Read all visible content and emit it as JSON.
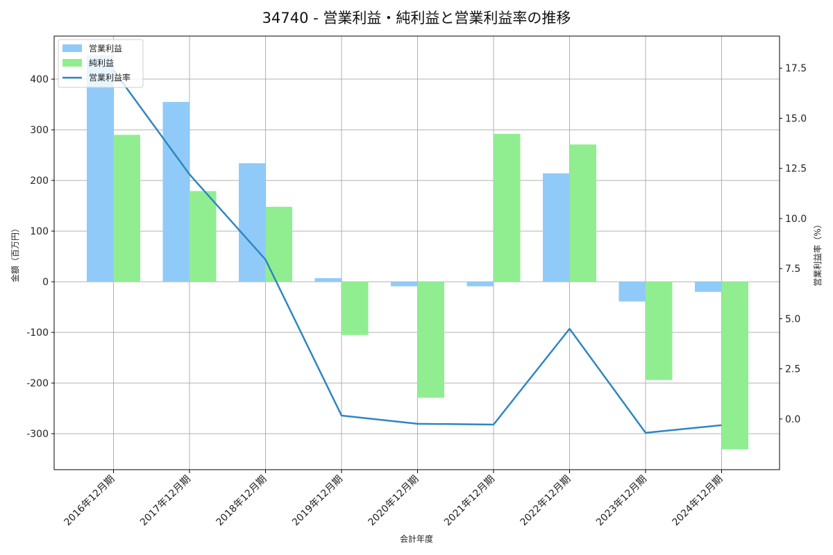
{
  "chart_data": {
    "type": "bar+line",
    "title": "34740 - 営業利益・純利益と営業利益率の推移",
    "xlabel": "会計年度",
    "ylabel": "金額（百万円）",
    "ylabel_right": "営業利益率（%）",
    "categories": [
      "2016年12月期",
      "2017年12月期",
      "2018年12月期",
      "2019年12月期",
      "2020年12月期",
      "2021年12月期",
      "2022年12月期",
      "2023年12月期",
      "2024年12月期"
    ],
    "series": [
      {
        "name": "営業利益",
        "type": "bar",
        "axis": "left",
        "color": "#90caf9",
        "values": [
          447,
          355,
          234,
          7,
          -9,
          -9,
          214,
          -39,
          -20
        ]
      },
      {
        "name": "純利益",
        "type": "bar",
        "axis": "left",
        "color": "#90ee90",
        "values": [
          290,
          179,
          148,
          -105,
          -229,
          292,
          271,
          -194,
          -331
        ]
      },
      {
        "name": "営業利益率",
        "type": "line",
        "axis": "right",
        "color": "#2e86c1",
        "values": [
          17.4,
          12.2,
          7.95,
          0.17,
          -0.24,
          -0.28,
          4.5,
          -0.69,
          -0.31
        ]
      }
    ],
    "ylim": [
      -371,
      485
    ],
    "ylim_right": [
      -2.53,
      19.1
    ],
    "yticks": [
      -300,
      -200,
      -100,
      0,
      100,
      200,
      300,
      400
    ],
    "yticks_right": [
      "0.0",
      "2.5",
      "5.0",
      "7.5",
      "10.0",
      "12.5",
      "15.0",
      "17.5"
    ],
    "grid": true,
    "legend_position": "upper left"
  }
}
